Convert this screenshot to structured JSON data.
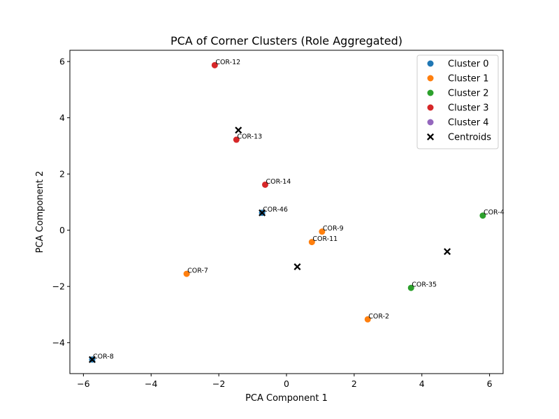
{
  "chart_data": {
    "type": "scatter",
    "title": "PCA of Corner Clusters (Role Aggregated)",
    "xlabel": "PCA Component 1",
    "ylabel": "PCA Component 2",
    "xlim": [
      -6.4,
      6.4
    ],
    "ylim": [
      -5.1,
      6.4
    ],
    "xticks": [
      -6,
      -4,
      -2,
      0,
      2,
      4,
      6
    ],
    "yticks": [
      -4,
      -2,
      0,
      2,
      4,
      6
    ],
    "grid": false,
    "legend_position": "top-right",
    "series": [
      {
        "name": "Cluster 0",
        "color": "#1f77b4",
        "points": [
          {
            "x": -5.74,
            "y": -4.6,
            "label": "COR-8"
          },
          {
            "x": -0.72,
            "y": 0.62,
            "label": "COR-46"
          }
        ]
      },
      {
        "name": "Cluster 1",
        "color": "#ff7f0e",
        "points": [
          {
            "x": -2.95,
            "y": -1.55,
            "label": "COR-7"
          },
          {
            "x": 0.75,
            "y": -0.42,
            "label": "COR-11"
          },
          {
            "x": 1.05,
            "y": -0.05,
            "label": "COR-9"
          },
          {
            "x": 2.4,
            "y": -3.17,
            "label": "COR-2"
          }
        ]
      },
      {
        "name": "Cluster 2",
        "color": "#2ca02c",
        "points": [
          {
            "x": 3.68,
            "y": -2.05,
            "label": "COR-35"
          },
          {
            "x": 5.8,
            "y": 0.52,
            "label": "COR-4"
          }
        ]
      },
      {
        "name": "Cluster 3",
        "color": "#d62728",
        "points": [
          {
            "x": -2.12,
            "y": 5.87,
            "label": "COR-12"
          },
          {
            "x": -1.48,
            "y": 3.22,
            "label": "COR-13"
          },
          {
            "x": -0.63,
            "y": 1.62,
            "label": "COR-14"
          }
        ]
      },
      {
        "name": "Cluster 4",
        "color": "#9467bd",
        "points": []
      }
    ],
    "centroids": {
      "name": "Centroids",
      "color": "#000000",
      "points": [
        {
          "x": -5.74,
          "y": -4.6
        },
        {
          "x": -0.72,
          "y": 0.62
        },
        {
          "x": 0.32,
          "y": -1.3
        },
        {
          "x": -1.42,
          "y": 3.56
        },
        {
          "x": 4.75,
          "y": -0.76
        }
      ]
    }
  }
}
